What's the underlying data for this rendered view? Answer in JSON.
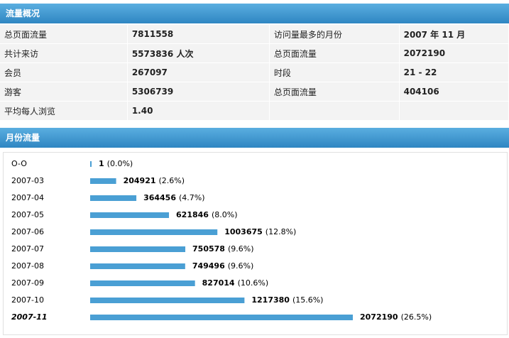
{
  "overview": {
    "title": "流量概况",
    "rows": [
      [
        "总页面流量",
        "7811558",
        "访问量最多的月份",
        "2007 年 11 月"
      ],
      [
        "共计来访",
        "5573836 人次",
        "总页面流量",
        "2072190"
      ],
      [
        "会员",
        "267097",
        "时段",
        "21 - 22"
      ],
      [
        "游客",
        "5306739",
        "总页面流量",
        "404106"
      ],
      [
        "平均每人浏览",
        "1.40"
      ]
    ]
  },
  "monthly": {
    "title": "月份流量",
    "months": [
      "O-O",
      "2007-03",
      "2007-04",
      "2007-05",
      "2007-06",
      "2007-07",
      "2007-08",
      "2007-09",
      "2007-10",
      "2007-11"
    ],
    "values": [
      1,
      204921,
      364456,
      621846,
      1003675,
      750578,
      749496,
      827014,
      1217380,
      2072190
    ],
    "percent_labels": [
      "(0.0%)",
      "(2.6%)",
      "(4.7%)",
      "(8.0%)",
      "(12.8%)",
      "(9.6%)",
      "(9.6%)",
      "(10.6%)",
      "(15.6%)",
      "(26.5%)"
    ],
    "highlight": "2007-11",
    "color": "#4a9fd4"
  }
}
